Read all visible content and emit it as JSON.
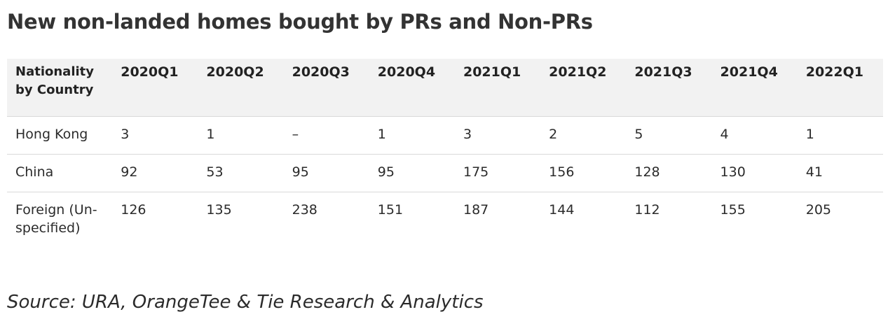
{
  "title": "New non-landed homes bought by PRs and Non-PRs",
  "source": "Source: URA, OrangeTee & Tie Research & Analytics",
  "chart_data": {
    "type": "table",
    "title": "New non-landed homes bought by PRs and Non-PRs",
    "row_header": "Nationality by Country",
    "columns": [
      "2020Q1",
      "2020Q2",
      "2020Q3",
      "2020Q4",
      "2021Q1",
      "2021Q2",
      "2021Q3",
      "2021Q4",
      "2022Q1"
    ],
    "rows": [
      {
        "label": "Hong Kong",
        "values": [
          "3",
          "1",
          "–",
          "1",
          "3",
          "2",
          "5",
          "4",
          "1"
        ]
      },
      {
        "label": "China",
        "values": [
          "92",
          "53",
          "95",
          "95",
          "175",
          "156",
          "128",
          "130",
          "41"
        ]
      },
      {
        "label": "Foreign (Un-specified)",
        "values": [
          "126",
          "135",
          "238",
          "151",
          "187",
          "144",
          "112",
          "155",
          "205"
        ]
      }
    ],
    "source": "Source: URA, OrangeTee & Tie Research & Analytics"
  }
}
